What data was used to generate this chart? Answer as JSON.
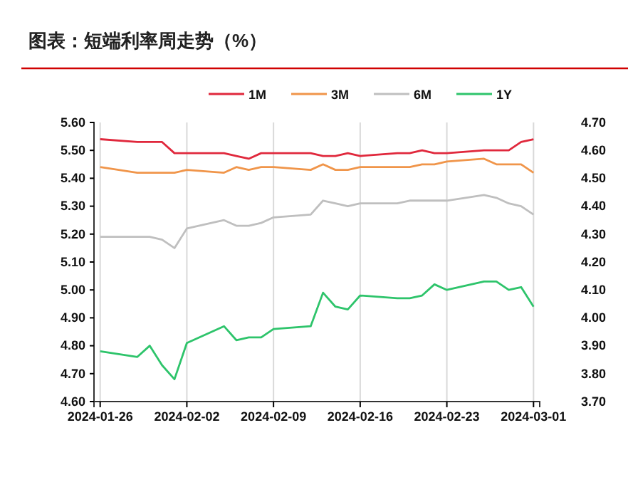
{
  "chart_data": {
    "type": "line",
    "title": "图表：短端利率周走势（%）",
    "x": [
      "2024-01-26",
      "2024-01-29",
      "2024-01-30",
      "2024-01-31",
      "2024-02-01",
      "2024-02-02",
      "2024-02-05",
      "2024-02-06",
      "2024-02-07",
      "2024-02-08",
      "2024-02-09",
      "2024-02-12",
      "2024-02-13",
      "2024-02-14",
      "2024-02-15",
      "2024-02-16",
      "2024-02-19",
      "2024-02-20",
      "2024-02-21",
      "2024-02-22",
      "2024-02-23",
      "2024-02-26",
      "2024-02-27",
      "2024-02-28",
      "2024-02-29",
      "2024-03-01"
    ],
    "series": [
      {
        "name": "1M",
        "color": "#e0283c",
        "values": [
          5.54,
          5.53,
          5.53,
          5.53,
          5.49,
          5.49,
          5.49,
          5.48,
          5.47,
          5.49,
          5.49,
          5.49,
          5.48,
          5.48,
          5.49,
          5.48,
          5.49,
          5.49,
          5.5,
          5.49,
          5.49,
          5.5,
          5.5,
          5.5,
          5.53,
          5.54
        ]
      },
      {
        "name": "3M",
        "color": "#f0954a",
        "values": [
          5.44,
          5.42,
          5.42,
          5.42,
          5.42,
          5.43,
          5.42,
          5.44,
          5.43,
          5.44,
          5.44,
          5.43,
          5.45,
          5.43,
          5.43,
          5.44,
          5.44,
          5.44,
          5.45,
          5.45,
          5.46,
          5.47,
          5.45,
          5.45,
          5.45,
          5.42
        ]
      },
      {
        "name": "6M",
        "color": "#bfbfbf",
        "values": [
          5.19,
          5.19,
          5.19,
          5.18,
          5.15,
          5.22,
          5.25,
          5.23,
          5.23,
          5.24,
          5.26,
          5.27,
          5.32,
          5.31,
          5.3,
          5.31,
          5.31,
          5.32,
          5.32,
          5.32,
          5.32,
          5.34,
          5.33,
          5.31,
          5.3,
          5.27
        ]
      },
      {
        "name": "1Y",
        "color": "#2ec46b",
        "values": [
          4.78,
          4.76,
          4.8,
          4.73,
          4.68,
          4.81,
          4.87,
          4.82,
          4.83,
          4.83,
          4.86,
          4.87,
          4.99,
          4.94,
          4.93,
          4.98,
          4.97,
          4.97,
          4.98,
          5.02,
          5.0,
          5.03,
          5.03,
          5.0,
          5.01,
          4.94
        ]
      }
    ],
    "xlim": [
      "2024-01-25T12:00",
      "2024-03-01T12:00"
    ],
    "xticks": [
      "2024-01-26",
      "2024-02-02",
      "2024-02-09",
      "2024-02-16",
      "2024-02-23",
      "2024-03-01"
    ],
    "ylim": [
      4.6,
      5.6
    ],
    "yticks": [
      {
        "value": 4.6,
        "label": "4.60"
      },
      {
        "value": 4.7,
        "label": "4.70"
      },
      {
        "value": 4.8,
        "label": "4.80"
      },
      {
        "value": 4.9,
        "label": "4.90"
      },
      {
        "value": 5.0,
        "label": "5.00"
      },
      {
        "value": 5.1,
        "label": "5.10"
      },
      {
        "value": 5.2,
        "label": "5.20"
      },
      {
        "value": 5.3,
        "label": "5.30"
      },
      {
        "value": 5.4,
        "label": "5.40"
      },
      {
        "value": 5.5,
        "label": "5.50"
      },
      {
        "value": 5.6,
        "label": "5.60"
      }
    ],
    "y2lim": [
      3.7,
      4.7
    ],
    "y2ticks": [
      {
        "value": 3.7,
        "label": "3.70"
      },
      {
        "value": 3.8,
        "label": "3.80"
      },
      {
        "value": 3.9,
        "label": "3.90"
      },
      {
        "value": 4.0,
        "label": "4.00"
      },
      {
        "value": 4.1,
        "label": "4.10"
      },
      {
        "value": 4.2,
        "label": "4.20"
      },
      {
        "value": 4.3,
        "label": "4.30"
      },
      {
        "value": 4.4,
        "label": "4.40"
      },
      {
        "value": 4.5,
        "label": "4.50"
      },
      {
        "value": 4.6,
        "label": "4.60"
      },
      {
        "value": 4.7,
        "label": "4.70"
      }
    ],
    "grid": "x",
    "legend": "top",
    "marker": "none",
    "line_style": "solid"
  }
}
